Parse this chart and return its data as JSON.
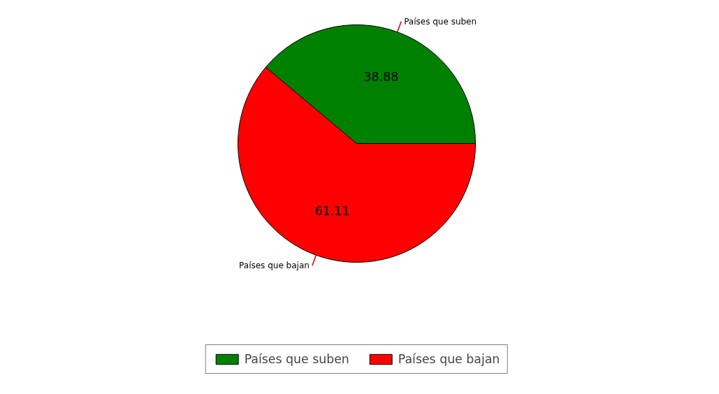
{
  "chart_data": {
    "type": "pie",
    "categories": [
      "Países que suben",
      "Países que bajan"
    ],
    "values": [
      38.88,
      61.11
    ],
    "colors": [
      "#008000",
      "#ff0000"
    ],
    "data_labels": true,
    "legend": "bottom"
  }
}
